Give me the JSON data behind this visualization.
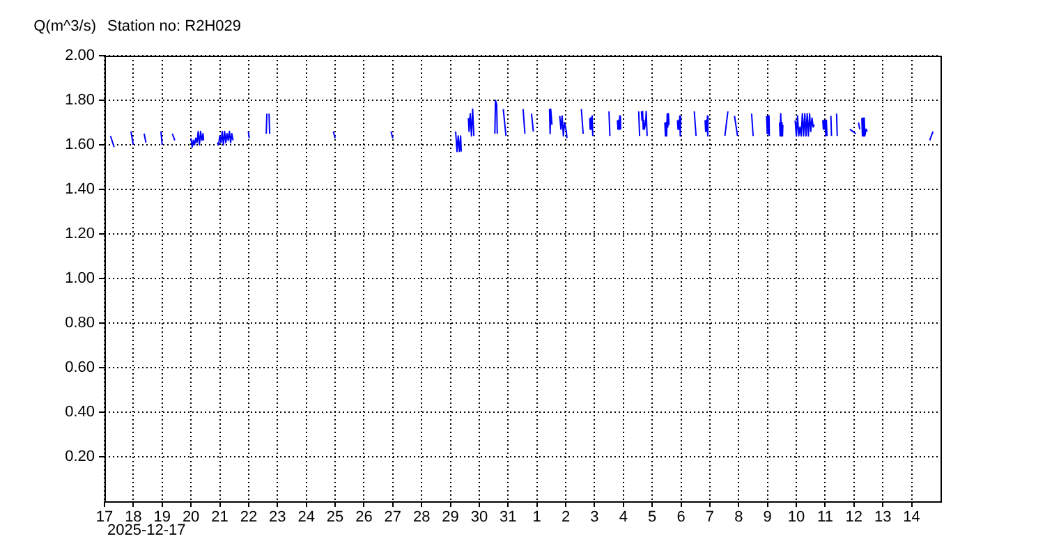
{
  "chart_data": {
    "type": "line",
    "title": "Station no: R2H029",
    "ylabel": "Q(m^3/s)",
    "annotations": [
      "2025-12-17"
    ],
    "color": "#0000ff",
    "line_style": "solid",
    "grid": true,
    "xlim": [
      "2025-12-17",
      "2026-01-15"
    ],
    "xticks": [
      {
        "value": "2025-12-17",
        "label": "17"
      },
      {
        "value": "2025-12-18",
        "label": "18"
      },
      {
        "value": "2025-12-19",
        "label": "19"
      },
      {
        "value": "2025-12-20",
        "label": "20"
      },
      {
        "value": "2025-12-21",
        "label": "21"
      },
      {
        "value": "2025-12-22",
        "label": "22"
      },
      {
        "value": "2025-12-23",
        "label": "23"
      },
      {
        "value": "2025-12-24",
        "label": "24"
      },
      {
        "value": "2025-12-25",
        "label": "25"
      },
      {
        "value": "2025-12-26",
        "label": "26"
      },
      {
        "value": "2025-12-27",
        "label": "27"
      },
      {
        "value": "2025-12-28",
        "label": "28"
      },
      {
        "value": "2025-12-29",
        "label": "29"
      },
      {
        "value": "2025-12-30",
        "label": "30"
      },
      {
        "value": "2025-12-31",
        "label": "31"
      },
      {
        "value": "2026-01-01",
        "label": "1"
      },
      {
        "value": "2026-01-02",
        "label": "2"
      },
      {
        "value": "2026-01-03",
        "label": "3"
      },
      {
        "value": "2026-01-04",
        "label": "4"
      },
      {
        "value": "2026-01-05",
        "label": "5"
      },
      {
        "value": "2026-01-06",
        "label": "6"
      },
      {
        "value": "2026-01-07",
        "label": "7"
      },
      {
        "value": "2026-01-08",
        "label": "8"
      },
      {
        "value": "2026-01-09",
        "label": "9"
      },
      {
        "value": "2026-01-10",
        "label": "10"
      },
      {
        "value": "2026-01-11",
        "label": "11"
      },
      {
        "value": "2026-01-12",
        "label": "12"
      },
      {
        "value": "2026-01-13",
        "label": "13"
      },
      {
        "value": "2026-01-14",
        "label": "14"
      }
    ],
    "ylim": [
      0,
      2
    ],
    "yticks": [
      {
        "value": 0.2,
        "label": "0.20"
      },
      {
        "value": 0.4,
        "label": "0.40"
      },
      {
        "value": 0.6,
        "label": "0.60"
      },
      {
        "value": 0.8,
        "label": "0.80"
      },
      {
        "value": 1.0,
        "label": "1.00"
      },
      {
        "value": 1.2,
        "label": "1.20"
      },
      {
        "value": 1.4,
        "label": "1.40"
      },
      {
        "value": 1.6,
        "label": "1.60"
      },
      {
        "value": 1.8,
        "label": "1.80"
      },
      {
        "value": 2.0,
        "label": "2.00"
      }
    ],
    "x": [
      "2025-12-17T05:00",
      "2025-12-17T08:00",
      "2025-12-17T12:00",
      "2025-12-17T22:00",
      "2025-12-18T00:00",
      "2025-12-18T05:00",
      "2025-12-18T09:00",
      "2025-12-18T10:30",
      "2025-12-18T16:00",
      "2025-12-18T23:00",
      "2025-12-19T00:00",
      "2025-12-19T05:00",
      "2025-12-19T08:30",
      "2025-12-19T10:30",
      "2025-12-19T16:00",
      "2025-12-20T00:00",
      "2025-12-20T01:00",
      "2025-12-20T02:00",
      "2025-12-20T03:00",
      "2025-12-20T04:00",
      "2025-12-20T05:00",
      "2025-12-20T06:00",
      "2025-12-20T07:00",
      "2025-12-20T08:00",
      "2025-12-20T09:00",
      "2025-12-20T10:00",
      "2025-12-20T10:30",
      "2025-12-20T16:00",
      "2025-12-20T22:00",
      "2025-12-20T23:00",
      "2025-12-21T00:00",
      "2025-12-21T01:00",
      "2025-12-21T02:00",
      "2025-12-21T03:00",
      "2025-12-21T04:00",
      "2025-12-21T05:00",
      "2025-12-21T06:00",
      "2025-12-21T07:00",
      "2025-12-21T08:00",
      "2025-12-21T09:00",
      "2025-12-21T10:00",
      "2025-12-21T11:00",
      "2025-12-21T18:00",
      "2025-12-21T23:45",
      "2025-12-22T00:30",
      "2025-12-22T06:00",
      "2025-12-22T14:40",
      "2025-12-22T15:10",
      "2025-12-22T16:00",
      "2025-12-22T17:00",
      "2025-12-22T17:30",
      "2025-12-23T12:00",
      "2025-12-24T22:30",
      "2025-12-25T00:00",
      "2025-12-25T12:00",
      "2025-12-26T22:30",
      "2025-12-27T00:00",
      "2025-12-27T12:00",
      "2025-12-29T04:20",
      "2025-12-29T05:30",
      "2025-12-29T06:30",
      "2025-12-29T07:30",
      "2025-12-29T08:30",
      "2025-12-29T09:00",
      "2025-12-29T12:00",
      "2025-12-29T15:00",
      "2025-12-29T15:30",
      "2025-12-29T16:30",
      "2025-12-29T17:30",
      "2025-12-29T18:30",
      "2025-12-29T19:30",
      "2025-12-30T06:00",
      "2025-12-30T13:00",
      "2025-12-30T13:30",
      "2025-12-30T14:30",
      "2025-12-30T15:00",
      "2025-12-30T17:30",
      "2025-12-30T20:00",
      "2025-12-30T22:15",
      "2025-12-31T06:00",
      "2025-12-31T12:30",
      "2025-12-31T14:00",
      "2025-12-31T17:00",
      "2025-12-31T19:30",
      "2025-12-31T21:00",
      "2026-01-01T05:00",
      "2026-01-01T10:30",
      "2026-01-01T11:00",
      "2026-01-01T11:30",
      "2026-01-01T12:30",
      "2026-01-01T16:00",
      "2026-01-01T19:00",
      "2026-01-01T20:00",
      "2026-01-01T21:00",
      "2026-01-01T22:00",
      "2026-01-01T23:00",
      "2026-01-02T00:30",
      "2026-01-02T01:00",
      "2026-01-02T07:00",
      "2026-01-02T13:00",
      "2026-01-02T14:30",
      "2026-01-02T17:30",
      "2026-01-02T20:00",
      "2026-01-02T20:20",
      "2026-01-02T20:40",
      "2026-01-02T21:00",
      "2026-01-02T21:20",
      "2026-01-02T21:40",
      "2026-01-02T22:00",
      "2026-01-02T22:30",
      "2026-01-03T06:00",
      "2026-01-03T12:00",
      "2026-01-03T12:45",
      "2026-01-03T16:00",
      "2026-01-03T19:00",
      "2026-01-03T19:30",
      "2026-01-03T20:00",
      "2026-01-03T20:30",
      "2026-01-03T21:00",
      "2026-01-03T21:15",
      "2026-01-03T21:30",
      "2026-01-03T21:45",
      "2026-01-04T06:00",
      "2026-01-04T12:45",
      "2026-01-04T13:30",
      "2026-01-04T14:15",
      "2026-01-04T15:00",
      "2026-01-04T15:30",
      "2026-01-04T16:00",
      "2026-01-04T16:30",
      "2026-01-04T17:00",
      "2026-01-04T17:30",
      "2026-01-04T18:30",
      "2026-01-04T19:00",
      "2026-01-04T19:45",
      "2026-01-05T04:00",
      "2026-01-05T10:30",
      "2026-01-05T11:00",
      "2026-01-05T11:30",
      "2026-01-05T12:00",
      "2026-01-05T12:30",
      "2026-01-05T13:00",
      "2026-01-05T13:30",
      "2026-01-05T14:00",
      "2026-01-05T18:00",
      "2026-01-05T21:00",
      "2026-01-05T21:30",
      "2026-01-05T22:00",
      "2026-01-05T22:30",
      "2026-01-05T23:00",
      "2026-01-05T23:20",
      "2026-01-05T23:45",
      "2026-01-06T06:00",
      "2026-01-06T11:00",
      "2026-01-06T12:30",
      "2026-01-06T17:00",
      "2026-01-06T20:00",
      "2026-01-06T20:30",
      "2026-01-06T21:00",
      "2026-01-06T21:30",
      "2026-01-06T22:00",
      "2026-01-06T22:15",
      "2026-01-06T22:30",
      "2026-01-07T06:00",
      "2026-01-07T12:30",
      "2026-01-07T15:00",
      "2026-01-07T18:00",
      "2026-01-07T20:30",
      "2026-01-07T23:00",
      "2026-01-08T06:00",
      "2026-01-08T10:45",
      "2026-01-08T12:00",
      "2026-01-08T18:00",
      "2026-01-08T23:15",
      "2026-01-08T23:45",
      "2026-01-09T00:15",
      "2026-01-09T00:45",
      "2026-01-09T01:15",
      "2026-01-09T01:30",
      "2026-01-09T06:00",
      "2026-01-09T10:00",
      "2026-01-09T10:30",
      "2026-01-09T11:00",
      "2026-01-09T11:30",
      "2026-01-09T12:00",
      "2026-01-09T12:30",
      "2026-01-09T12:45",
      "2026-01-09T18:00",
      "2026-01-09T23:00",
      "2026-01-10T00:00",
      "2026-01-10T01:00",
      "2026-01-10T02:00",
      "2026-01-10T03:00",
      "2026-01-10T04:00",
      "2026-01-10T05:00",
      "2026-01-10T06:00",
      "2026-01-10T07:00",
      "2026-01-10T08:00",
      "2026-01-10T09:00",
      "2026-01-10T10:00",
      "2026-01-10T11:00",
      "2026-01-10T12:00",
      "2026-01-10T13:00",
      "2026-01-10T14:00",
      "2026-01-10T15:00",
      "2026-01-10T18:00",
      "2026-01-10T22:00",
      "2026-01-10T22:30",
      "2026-01-10T23:00",
      "2026-01-10T23:30",
      "2026-01-11T00:00",
      "2026-01-11T00:30",
      "2026-01-11T01:00",
      "2026-01-11T01:30",
      "2026-01-11T03:00",
      "2026-01-11T04:45",
      "2026-01-11T05:15",
      "2026-01-11T07:00",
      "2026-01-11T09:30",
      "2026-01-11T10:00",
      "2026-01-11T16:00",
      "2026-01-11T20:30",
      "2026-01-12T01:30",
      "2026-01-12T02:30",
      "2026-01-12T03:45",
      "2026-01-12T04:45",
      "2026-01-12T05:30",
      "2026-01-12T06:30",
      "2026-01-12T07:00",
      "2026-01-12T07:30",
      "2026-01-12T08:00",
      "2026-01-12T08:30",
      "2026-01-12T09:00",
      "2026-01-12T10:00",
      "2026-01-12T11:00",
      "2026-01-13T00:00",
      "2026-01-14T15:00",
      "2026-01-14T17:45"
    ],
    "values": [
      1.64,
      1.59,
      null,
      1.66,
      1.6,
      null,
      1.65,
      1.61,
      null,
      1.66,
      1.6,
      null,
      1.65,
      1.62,
      null,
      1.63,
      1.59,
      1.62,
      1.6,
      1.63,
      1.61,
      1.66,
      1.6,
      1.66,
      1.62,
      1.65,
      1.62,
      null,
      1.61,
      1.6,
      1.64,
      1.61,
      1.66,
      1.6,
      1.66,
      1.61,
      1.65,
      1.62,
      1.66,
      1.61,
      1.65,
      1.62,
      null,
      1.66,
      1.63,
      null,
      1.65,
      1.74,
      null,
      1.74,
      1.65,
      null,
      1.66,
      1.63,
      null,
      1.66,
      1.63,
      null,
      1.66,
      1.57,
      1.64,
      1.57,
      1.64,
      1.57,
      null,
      1.72,
      1.66,
      1.74,
      1.64,
      1.76,
      1.64,
      null,
      1.65,
      1.8,
      1.78,
      1.65,
      null,
      1.76,
      1.64,
      null,
      1.76,
      1.65,
      null,
      1.74,
      1.66,
      null,
      1.76,
      1.65,
      1.76,
      1.69,
      null,
      1.73,
      1.67,
      1.73,
      1.64,
      1.7,
      1.66,
      1.63,
      null,
      1.76,
      1.65,
      null,
      1.72,
      1.67,
      1.72,
      1.67,
      1.72,
      1.67,
      1.73,
      1.64,
      null,
      1.75,
      1.64,
      null,
      1.71,
      1.67,
      1.71,
      1.67,
      1.73,
      1.67,
      1.73,
      1.67,
      null,
      1.75,
      1.64,
      null,
      1.75,
      1.71,
      1.75,
      1.67,
      1.71,
      1.67,
      1.7,
      1.75,
      1.64,
      null,
      1.7,
      1.64,
      1.7,
      1.64,
      1.74,
      1.68,
      1.74,
      1.69,
      null,
      1.71,
      1.67,
      1.71,
      1.67,
      1.73,
      1.64,
      1.73,
      null,
      1.75,
      1.64,
      null,
      1.71,
      1.66,
      1.71,
      1.66,
      1.73,
      1.64,
      1.73,
      null,
      1.64,
      1.75,
      null,
      1.73,
      1.64,
      null,
      1.74,
      1.64,
      null,
      1.73,
      1.65,
      1.73,
      1.65,
      1.73,
      1.64,
      null,
      1.7,
      1.64,
      1.74,
      1.64,
      1.7,
      1.64,
      1.69,
      null,
      1.71,
      1.64,
      1.73,
      1.64,
      1.68,
      1.64,
      1.74,
      1.64,
      1.74,
      1.64,
      1.74,
      1.64,
      1.74,
      1.66,
      1.72,
      1.68,
      1.69,
      null,
      1.71,
      1.67,
      1.71,
      1.67,
      1.71,
      1.64,
      1.71,
      1.64,
      null,
      1.73,
      1.64,
      null,
      1.74,
      1.64,
      null,
      1.67,
      1.65,
      null,
      1.7,
      1.67,
      null,
      1.72,
      1.64,
      1.72,
      1.64,
      1.72,
      1.64,
      1.67,
      1.66,
      null,
      1.62,
      1.66
    ]
  }
}
